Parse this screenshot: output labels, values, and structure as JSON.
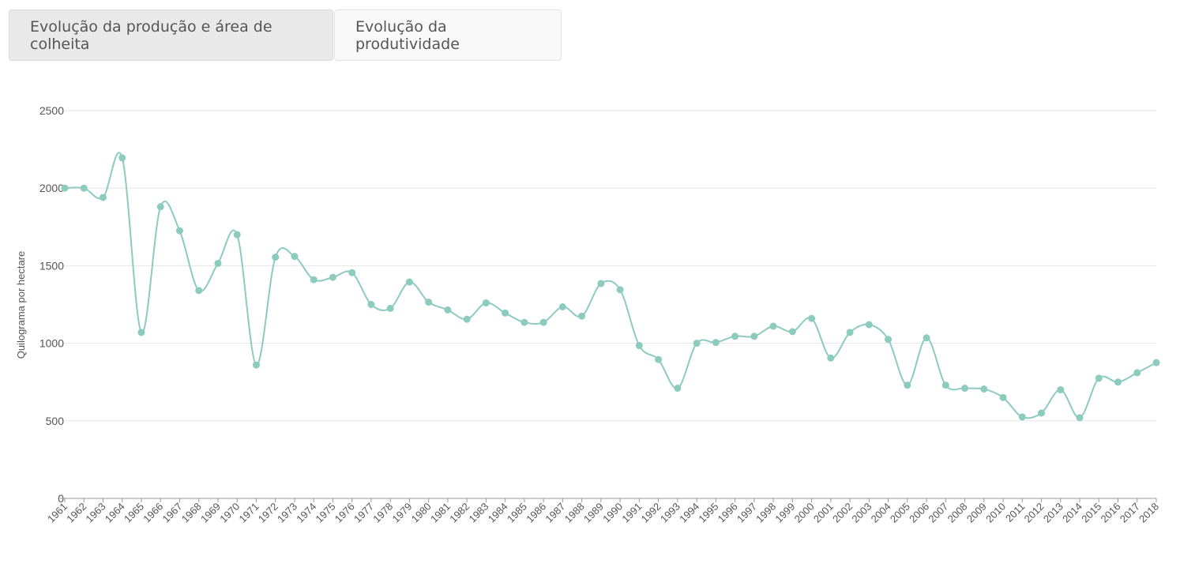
{
  "tabs": [
    {
      "label": "Evolução da produção e área de colheita",
      "active": true
    },
    {
      "label": "Evolução da produtividade",
      "active": false
    }
  ],
  "colors": {
    "series": "#8ccbbe",
    "grid": "#e6e6e6",
    "axis": "#999999",
    "text": "#555555"
  },
  "chart_data": {
    "type": "line",
    "title": "",
    "xlabel": "",
    "ylabel": "Quilograma por hectare",
    "ylim": [
      0,
      2500
    ],
    "yticks": [
      0,
      500,
      1000,
      1500,
      2000,
      2500
    ],
    "grid": true,
    "smooth": true,
    "markers": true,
    "x": [
      "1961",
      "1962",
      "1963",
      "1964",
      "1965",
      "1966",
      "1967",
      "1968",
      "1969",
      "1970",
      "1971",
      "1972",
      "1973",
      "1974",
      "1975",
      "1976",
      "1977",
      "1978",
      "1979",
      "1980",
      "1981",
      "1982",
      "1983",
      "1984",
      "1985",
      "1986",
      "1987",
      "1988",
      "1989",
      "1990",
      "1991",
      "1992",
      "1993",
      "1994",
      "1995",
      "1996",
      "1997",
      "1998",
      "1999",
      "2000",
      "2001",
      "2002",
      "2003",
      "2004",
      "2005",
      "2006",
      "2007",
      "2008",
      "2009",
      "2010",
      "2011",
      "2012",
      "2013",
      "2014",
      "2015",
      "2016",
      "2017",
      "2018"
    ],
    "series": [
      {
        "values": [
          2000,
          2000,
          1940,
          2195,
          1070,
          1880,
          1725,
          1340,
          1515,
          1700,
          860,
          1555,
          1560,
          1410,
          1425,
          1455,
          1250,
          1225,
          1395,
          1265,
          1215,
          1155,
          1260,
          1195,
          1135,
          1135,
          1235,
          1175,
          1385,
          1345,
          985,
          895,
          710,
          1000,
          1005,
          1045,
          1045,
          1110,
          1075,
          1160,
          905,
          1070,
          1120,
          1025,
          730,
          1035,
          730,
          710,
          705,
          650,
          525,
          550,
          700,
          520,
          775,
          750,
          810,
          875
        ]
      }
    ]
  }
}
